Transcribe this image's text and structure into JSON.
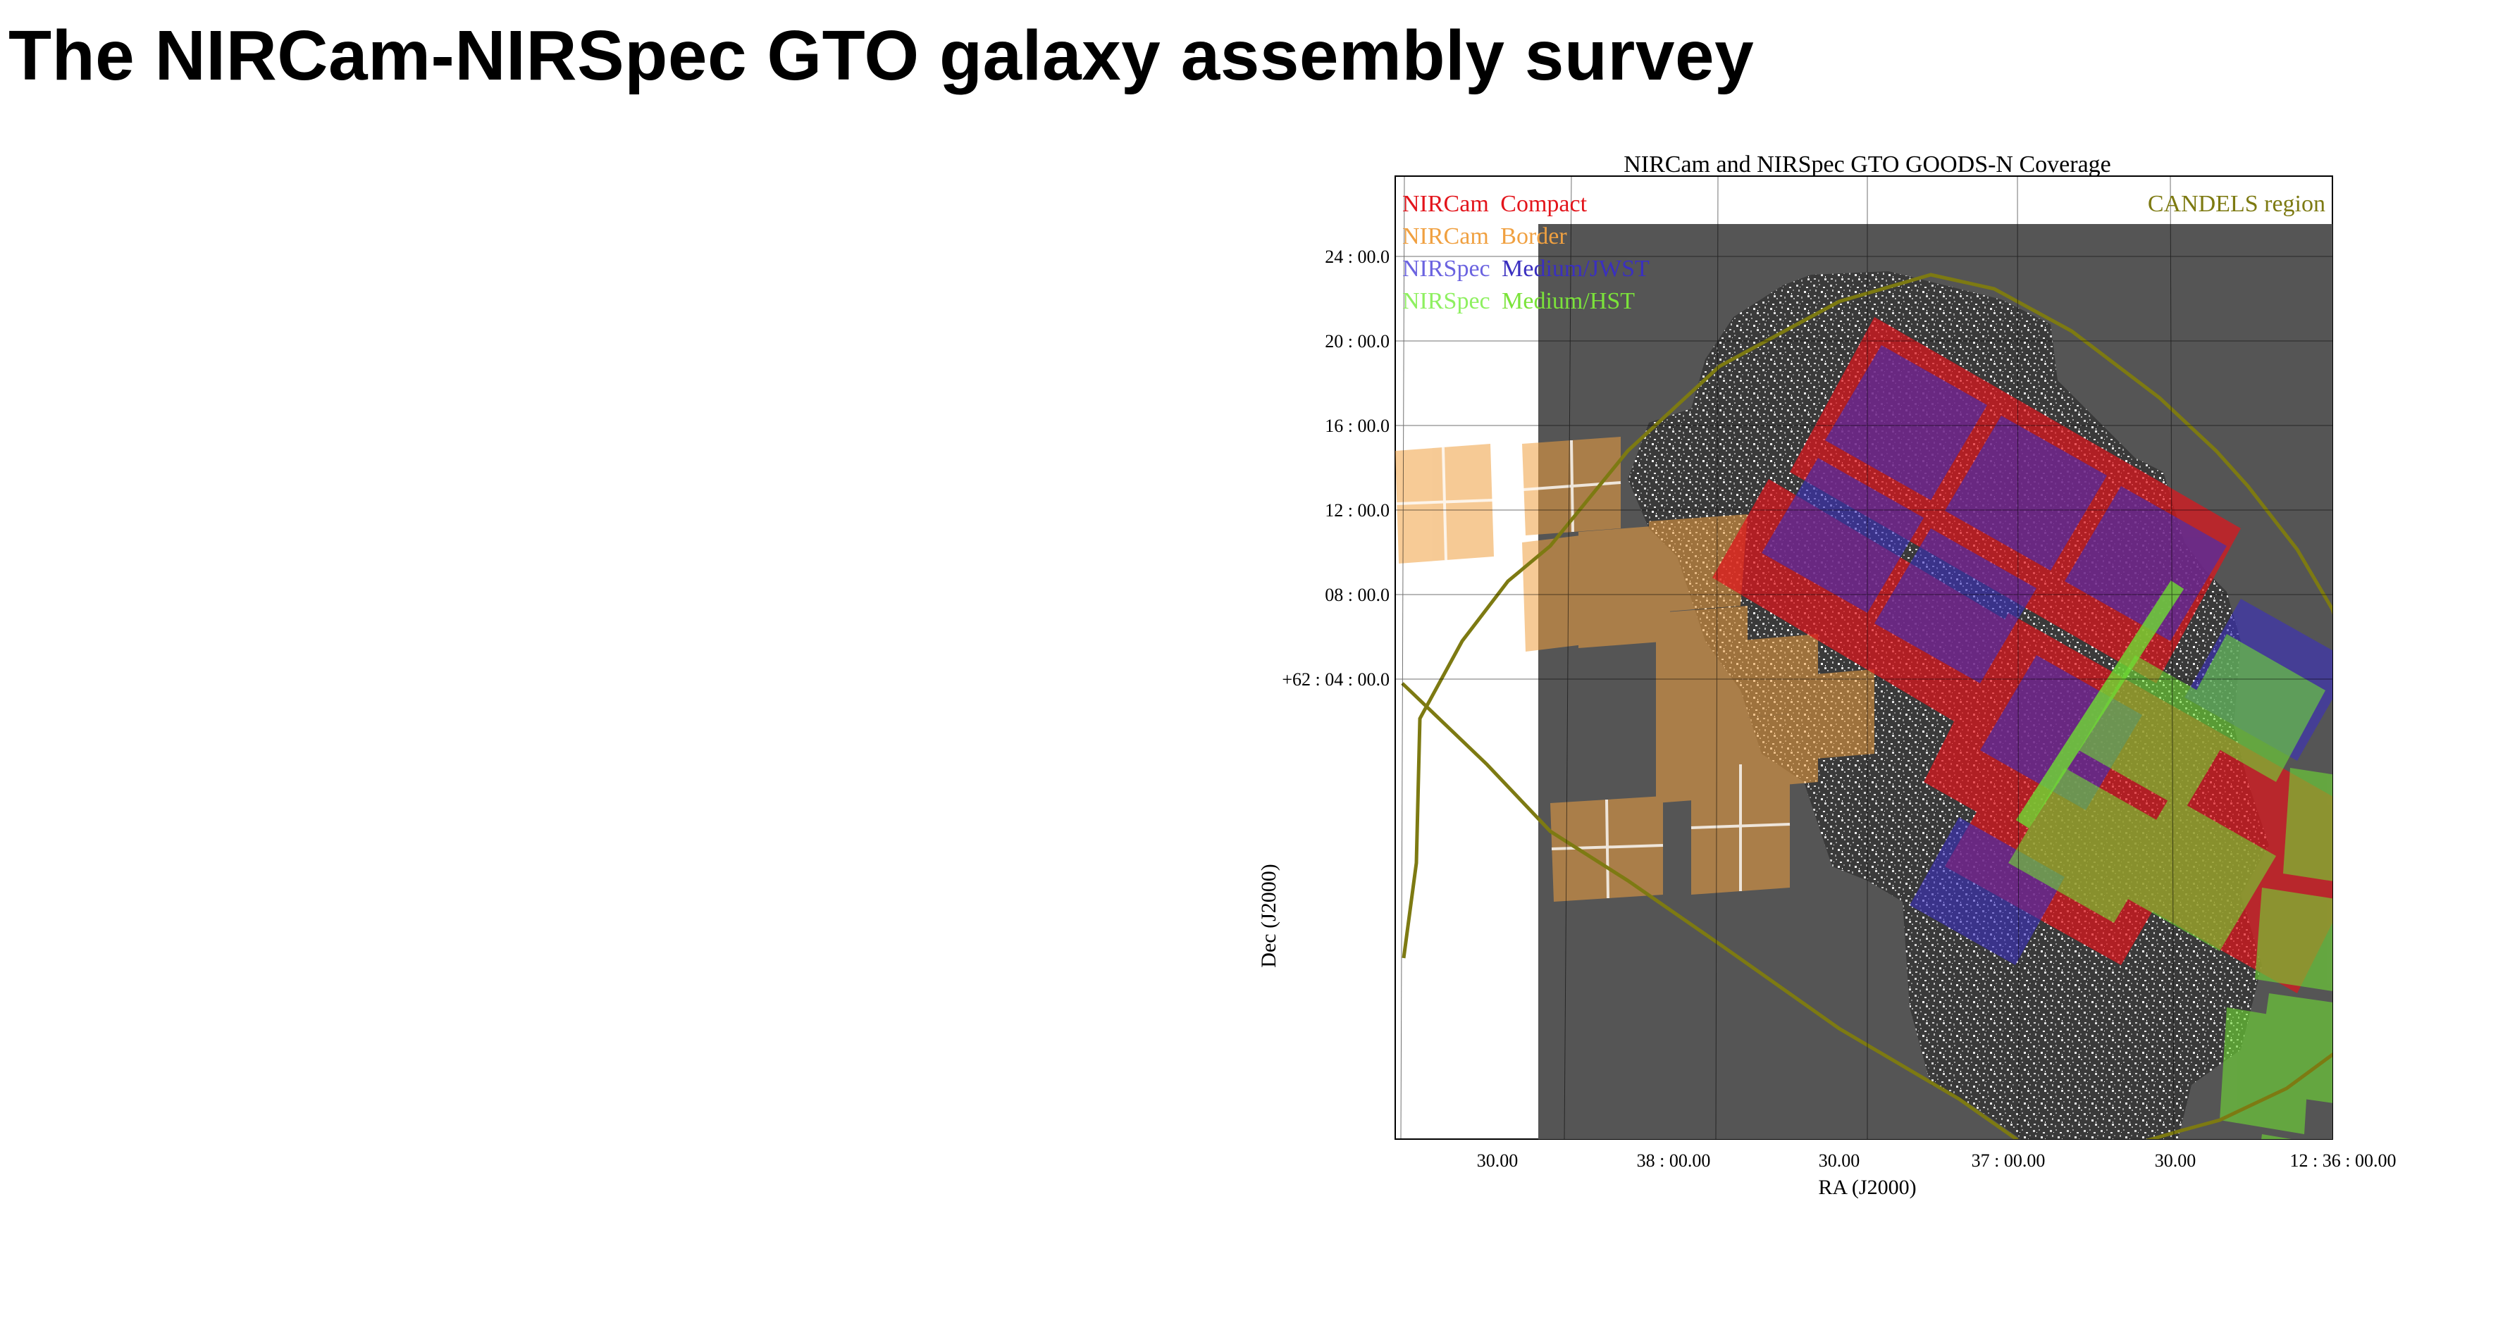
{
  "slide": {
    "title": "The NIRCam-NIRSpec GTO galaxy assembly survey"
  },
  "figure": {
    "title": "NIRCam and NIRSpec GTO GOODS-N Coverage",
    "xlabel": "RA (J2000)",
    "ylabel": "Dec (J2000)",
    "x_ticks": [
      "30.00",
      "38 : 00.00",
      "30.00",
      "37 : 00.00",
      "30.00",
      "12 : 36 : 00.00"
    ],
    "y_ticks": [
      "24 : 00.0",
      "20 : 00.0",
      "16 : 00.0",
      "12 : 00.0",
      "08 : 00.0",
      "+62 : 04 : 00.0"
    ],
    "legend": [
      {
        "instrument": "NIRCam",
        "mode": "Compact",
        "color": "#e3141b"
      },
      {
        "instrument": "NIRCam",
        "mode": "Border",
        "color": "#f0a040"
      },
      {
        "instrument": "NIRSpec",
        "mode": "Medium/JWST",
        "color": "#5a4fd0"
      },
      {
        "instrument": "NIRSpec",
        "mode": "Medium/HST",
        "color": "#7be33a"
      }
    ],
    "region_label": "CANDELS region",
    "colors": {
      "candels": "#7d7a12",
      "background_field": "#555555",
      "compact": "#e3141b",
      "border": "#f0a040",
      "jwst": "#3a2fc0",
      "hst": "#6fdc33"
    }
  }
}
